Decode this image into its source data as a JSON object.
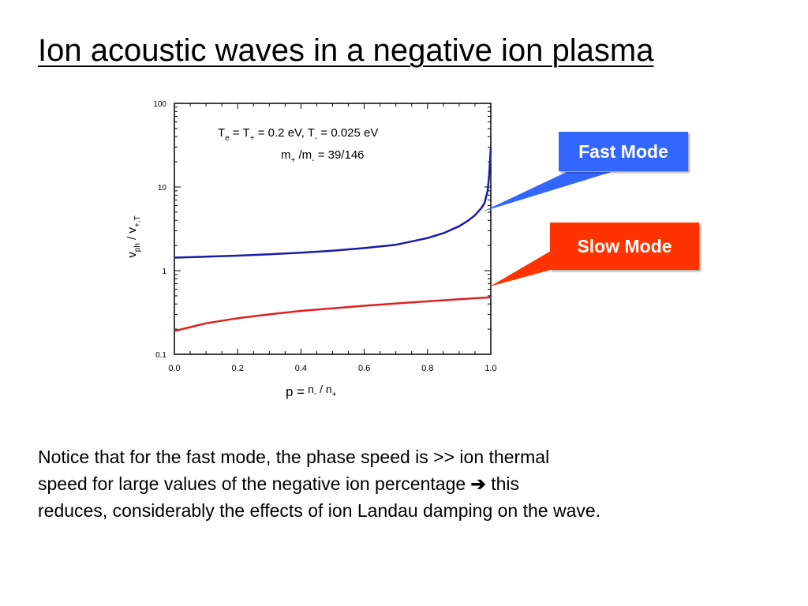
{
  "title": "Ion acoustic waves in a negative ion plasma",
  "callouts": {
    "fast": {
      "label": "Fast Mode",
      "color": "#3366ff"
    },
    "slow": {
      "label": "Slow Mode",
      "color": "#ff3300"
    }
  },
  "note": {
    "line1": "Notice that for the fast mode, the phase speed is >> ion thermal",
    "line2a": "speed for large values of the negative ion percentage",
    "arrow": "➔",
    "line2b": "this",
    "line3": "reduces, considerably the effects of ion Landau damping on the wave."
  },
  "chart_data": {
    "type": "line",
    "yscale": "log",
    "xlim": [
      0.0,
      1.0
    ],
    "ylim": [
      0.1,
      100
    ],
    "xticks": [
      "0.0",
      "0.2",
      "0.4",
      "0.6",
      "0.8",
      "1.0"
    ],
    "yticks": [
      "0.1",
      "1",
      "10",
      "100"
    ],
    "ylabel": {
      "v": "v",
      "ph": "ph",
      "slash": " / v",
      "sub": "+,T"
    },
    "xlabel": {
      "p": "p =",
      "n": "n",
      "minus": "-",
      "slash": " / n",
      "plus": "+"
    },
    "annotations": {
      "line1": {
        "T": "T",
        "e": "e",
        "eq1": " = T",
        "p": "+",
        "eq2": "  = 0.2 eV, T",
        "m": "-",
        "eq3": " = 0.025 eV"
      },
      "line2": {
        "m": "m",
        "p": "+",
        "slash": " /m",
        "mm": "-",
        "eq": " = 39/146"
      }
    },
    "series": [
      {
        "color": "#1a1aa8",
        "x": [
          0.0,
          0.1,
          0.2,
          0.3,
          0.4,
          0.5,
          0.6,
          0.7,
          0.8,
          0.85,
          0.9,
          0.93,
          0.95,
          0.97,
          0.98,
          0.99,
          0.995,
          1.0
        ],
        "y": [
          1.43,
          1.47,
          1.51,
          1.57,
          1.64,
          1.73,
          1.86,
          2.04,
          2.45,
          2.8,
          3.4,
          4.0,
          4.6,
          5.6,
          6.4,
          9.0,
          14.0,
          30.0
        ]
      },
      {
        "color": "#e02020",
        "x": [
          0.0,
          0.1,
          0.2,
          0.3,
          0.4,
          0.5,
          0.6,
          0.7,
          0.8,
          0.9,
          1.0
        ],
        "y": [
          0.19,
          0.235,
          0.27,
          0.3,
          0.33,
          0.355,
          0.38,
          0.405,
          0.43,
          0.455,
          0.48
        ]
      }
    ]
  }
}
